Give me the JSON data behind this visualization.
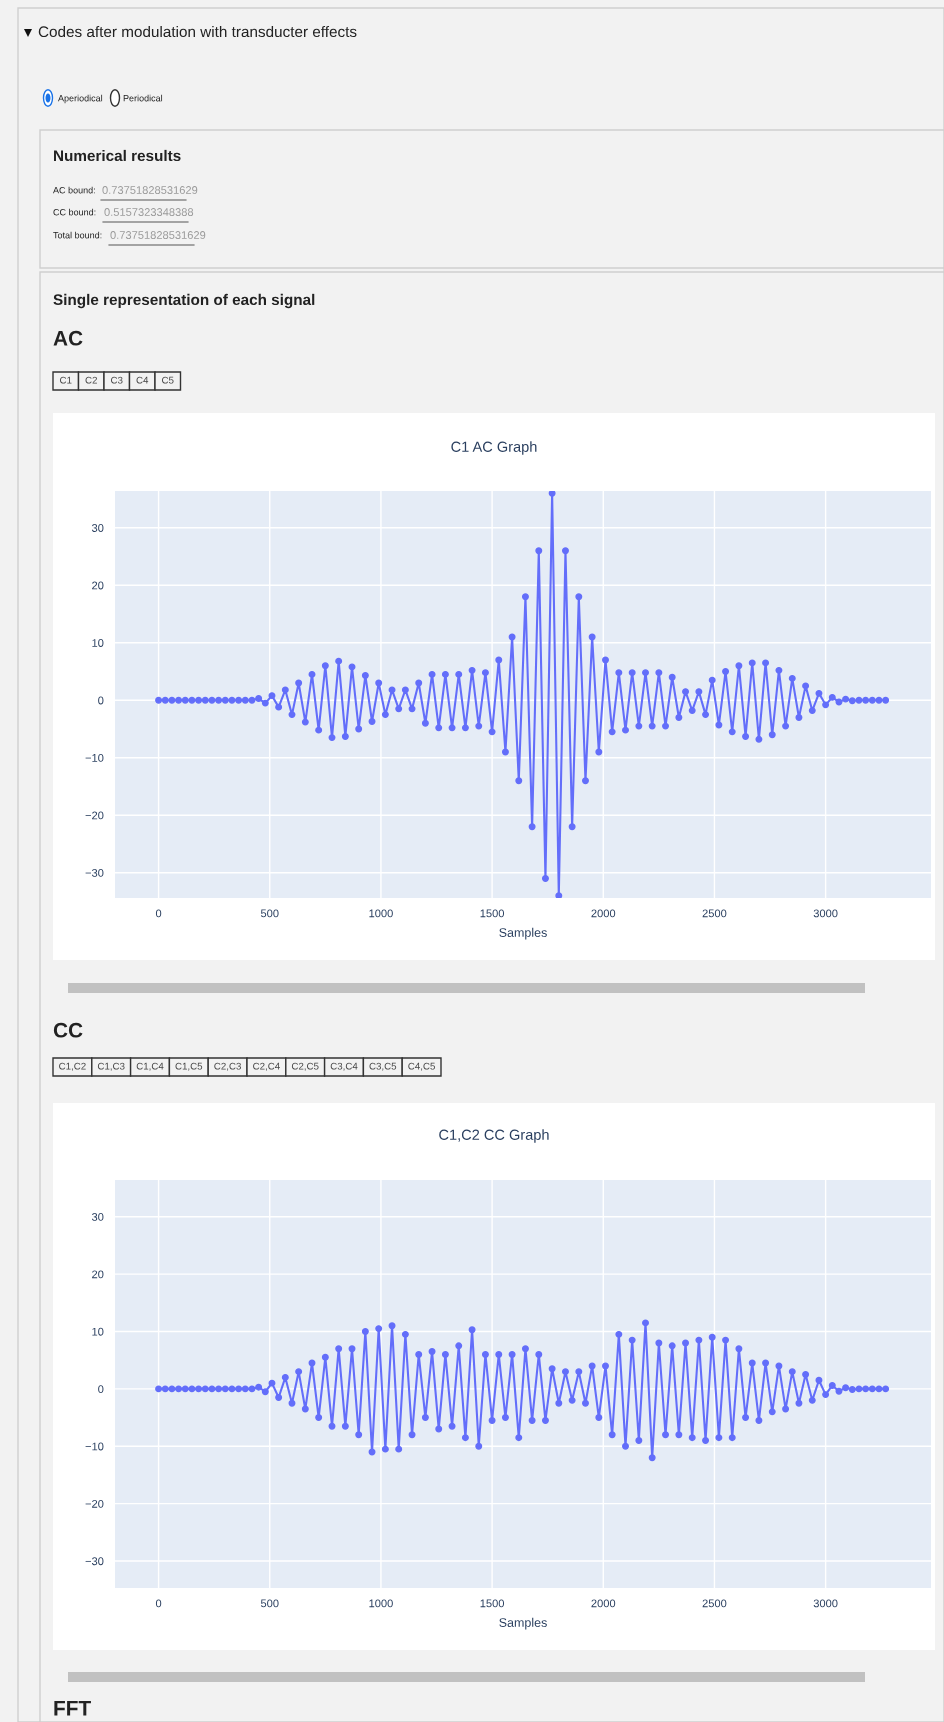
{
  "chart_data": [
    {
      "type": "line",
      "title": "C1 AC Graph",
      "xlabel": "Samples",
      "color": "#636efa",
      "marker": "circle",
      "grid": true,
      "xlim": [
        -196,
        3474
      ],
      "ylim": [
        -34.4,
        36.4
      ],
      "xticks": [
        0,
        500,
        1000,
        1500,
        2000,
        2500,
        3000
      ],
      "yticks": [
        -30,
        -20,
        -10,
        0,
        10,
        20,
        30
      ],
      "x": [
        0,
        30,
        60,
        90,
        120,
        150,
        180,
        210,
        240,
        270,
        300,
        330,
        360,
        390,
        420,
        450,
        480,
        510,
        540,
        570,
        600,
        630,
        660,
        690,
        720,
        750,
        780,
        810,
        840,
        870,
        900,
        930,
        960,
        990,
        1020,
        1050,
        1080,
        1110,
        1140,
        1170,
        1200,
        1230,
        1260,
        1290,
        1320,
        1350,
        1380,
        1410,
        1440,
        1470,
        1500,
        1530,
        1560,
        1590,
        1620,
        1650,
        1680,
        1710,
        1740,
        1770,
        1800,
        1830,
        1860,
        1890,
        1920,
        1950,
        1980,
        2010,
        2040,
        2070,
        2100,
        2130,
        2160,
        2190,
        2220,
        2250,
        2280,
        2310,
        2340,
        2370,
        2400,
        2430,
        2460,
        2490,
        2520,
        2550,
        2580,
        2610,
        2640,
        2670,
        2700,
        2730,
        2760,
        2790,
        2820,
        2850,
        2880,
        2910,
        2940,
        2970,
        3000,
        3030,
        3060,
        3090,
        3120,
        3150,
        3180,
        3210,
        3240,
        3270
      ],
      "values": [
        0,
        0,
        0,
        0,
        0,
        0,
        0,
        0,
        0,
        0,
        0,
        0,
        0,
        0,
        0,
        0.3,
        -0.5,
        0.8,
        -1.2,
        1.8,
        -2.5,
        3,
        -3.8,
        4.5,
        -5.2,
        6,
        -6.5,
        6.8,
        -6.3,
        5.8,
        -5,
        4.3,
        -3.7,
        3,
        -2.5,
        1.8,
        -1.5,
        1.8,
        -1.5,
        3,
        -4,
        4.5,
        -4.8,
        4.5,
        -4.8,
        4.5,
        -4.8,
        5.2,
        -4.5,
        4.8,
        -5.5,
        7,
        -9,
        11,
        -14,
        18,
        -22,
        26,
        -31,
        36,
        -34,
        26,
        -22,
        18,
        -14,
        11,
        -9,
        7,
        -5.5,
        4.8,
        -5.2,
        4.8,
        -4.5,
        4.8,
        -4.5,
        4.8,
        -4.5,
        4,
        -3,
        1.5,
        -1.8,
        1.5,
        -2.5,
        3.5,
        -4.3,
        5,
        -5.5,
        6,
        -6.3,
        6.5,
        -6.8,
        6.5,
        -6,
        5.2,
        -4.5,
        3.8,
        -3,
        2.5,
        -1.8,
        1.2,
        -0.8,
        0.5,
        -0.3,
        0.2,
        -0.1,
        0,
        0,
        0,
        0,
        0
      ],
      "annotations": [
        "Codes after modulation with transducter effects",
        "Aperiodical",
        "Periodical",
        "Numerical results",
        "AC bound:",
        "0.73751828531629",
        "CC bound:",
        "0.5157323348388",
        "Total bound:",
        "0.73751828531629",
        "Single representation of each signal",
        "AC",
        "C1",
        "C2",
        "C3",
        "C4",
        "C5"
      ]
    },
    {
      "type": "line",
      "title": "C1,C2 CC Graph",
      "xlabel": "Samples",
      "color": "#636efa",
      "marker": "circle",
      "grid": true,
      "xlim": [
        -196,
        3474
      ],
      "ylim": [
        -34.7,
        36.4
      ],
      "xticks": [
        0,
        500,
        1000,
        1500,
        2000,
        2500,
        3000
      ],
      "yticks": [
        -30,
        -20,
        -10,
        0,
        10,
        20,
        30
      ],
      "x": [
        0,
        30,
        60,
        90,
        120,
        150,
        180,
        210,
        240,
        270,
        300,
        330,
        360,
        390,
        420,
        450,
        480,
        510,
        540,
        570,
        600,
        630,
        660,
        690,
        720,
        750,
        780,
        810,
        840,
        870,
        900,
        930,
        960,
        990,
        1020,
        1050,
        1080,
        1110,
        1140,
        1170,
        1200,
        1230,
        1260,
        1290,
        1320,
        1350,
        1380,
        1410,
        1440,
        1470,
        1500,
        1530,
        1560,
        1590,
        1620,
        1650,
        1680,
        1710,
        1740,
        1770,
        1800,
        1830,
        1860,
        1890,
        1920,
        1950,
        1980,
        2010,
        2040,
        2070,
        2100,
        2130,
        2160,
        2190,
        2220,
        2250,
        2280,
        2310,
        2340,
        2370,
        2400,
        2430,
        2460,
        2490,
        2520,
        2550,
        2580,
        2610,
        2640,
        2670,
        2700,
        2730,
        2760,
        2790,
        2820,
        2850,
        2880,
        2910,
        2940,
        2970,
        3000,
        3030,
        3060,
        3090,
        3120,
        3150,
        3180,
        3210,
        3240,
        3270
      ],
      "values": [
        0,
        0,
        0,
        0,
        0,
        0,
        0,
        0,
        0,
        0,
        0,
        0,
        0,
        0,
        0,
        0.3,
        -0.5,
        1,
        -1.5,
        2,
        -2.5,
        3,
        -3.5,
        4.5,
        -5,
        5.5,
        -6.5,
        7,
        -6.5,
        7,
        -8,
        10,
        -11,
        10.5,
        -10.5,
        11,
        -10.5,
        9.5,
        -8,
        6,
        -5,
        6.5,
        -7,
        6,
        -6.5,
        7.5,
        -8.5,
        10.3,
        -10,
        6,
        -5.5,
        6,
        -5,
        6,
        -8.5,
        7,
        -5.5,
        6,
        -5.5,
        3.5,
        -2.5,
        3,
        -2,
        3,
        -2.5,
        4,
        -5,
        4,
        -8,
        9.5,
        -10,
        8.5,
        -9,
        11.5,
        -12,
        8,
        -8,
        7.5,
        -8,
        8,
        -8.5,
        8.5,
        -9,
        9,
        -8.5,
        8.5,
        -8.5,
        7,
        -5,
        4.5,
        -5.5,
        4.5,
        -4,
        4,
        -3.5,
        3,
        -2.5,
        2.5,
        -2,
        1.5,
        -1,
        0.6,
        -0.4,
        0.2,
        -0.1,
        0,
        0,
        0,
        0,
        0
      ],
      "annotations": [
        "CC",
        "C1,C2",
        "C1,C3",
        "C1,C4",
        "C1,C5",
        "C2,C3",
        "C2,C4",
        "C2,C5",
        "C3,C4",
        "C3,C5",
        "C4,C5",
        "FFT"
      ]
    }
  ]
}
